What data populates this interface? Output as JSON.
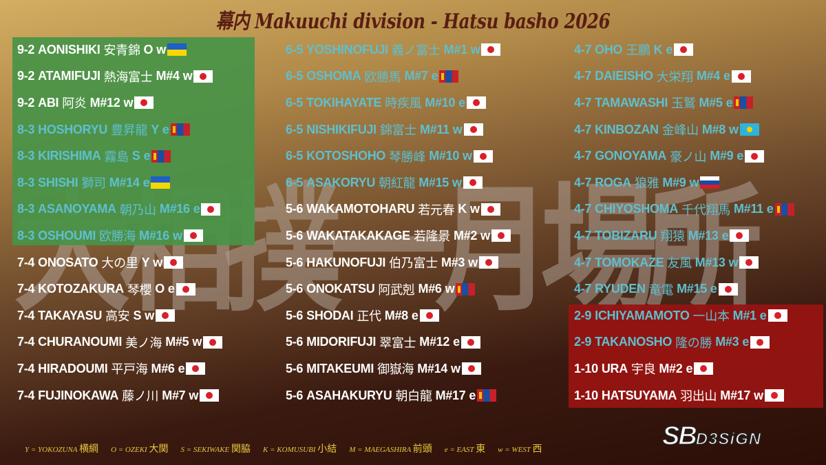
{
  "title": "幕内 Makuuchi division - Hatsu basho 2026",
  "watermark": "大相撲一月場所",
  "columns": [
    [
      {
        "record": "9-2",
        "name": "AONISHIKI",
        "kanji": "安青錦",
        "rank": "O",
        "side": "w",
        "flag": "ukraine",
        "color": "white"
      },
      {
        "record": "9-2",
        "name": "ATAMIFUJI",
        "kanji": "熱海富士",
        "rank": "M#4",
        "side": "w",
        "flag": "japan",
        "color": "white"
      },
      {
        "record": "9-2",
        "name": "ABI",
        "kanji": "阿炎",
        "rank": "M#12",
        "side": "w",
        "flag": "japan",
        "color": "white"
      },
      {
        "record": "8-3",
        "name": "HOSHORYU",
        "kanji": "豊昇龍",
        "rank": "Y",
        "side": "e",
        "flag": "mongolia",
        "color": "teal"
      },
      {
        "record": "8-3",
        "name": "KIRISHIMA",
        "kanji": "霧島",
        "rank": "S",
        "side": "e",
        "flag": "mongolia",
        "color": "teal"
      },
      {
        "record": "8-3",
        "name": "SHISHI",
        "kanji": "獅司",
        "rank": "M#14",
        "side": "e",
        "flag": "ukraine",
        "color": "teal"
      },
      {
        "record": "8-3",
        "name": "ASANOYAMA",
        "kanji": "朝乃山",
        "rank": "M#16",
        "side": "e",
        "flag": "japan",
        "color": "teal"
      },
      {
        "record": "8-3",
        "name": "OSHOUMI",
        "kanji": "欧勝海",
        "rank": "M#16",
        "side": "w",
        "flag": "japan",
        "color": "teal"
      },
      {
        "record": "7-4",
        "name": "ONOSATO",
        "kanji": "大の里",
        "rank": "Y",
        "side": "w",
        "flag": "japan",
        "color": "white"
      },
      {
        "record": "7-4",
        "name": "KOTOZAKURA",
        "kanji": "琴櫻",
        "rank": "O",
        "side": "e",
        "flag": "japan",
        "color": "white"
      },
      {
        "record": "7-4",
        "name": "TAKAYASU",
        "kanji": "高安",
        "rank": "S",
        "side": "w",
        "flag": "japan",
        "color": "white"
      },
      {
        "record": "7-4",
        "name": "CHURANOUMI",
        "kanji": "美ノ海",
        "rank": "M#5",
        "side": "w",
        "flag": "japan",
        "color": "white"
      },
      {
        "record": "7-4",
        "name": "HIRADOUMI",
        "kanji": "平戸海",
        "rank": "M#6",
        "side": "e",
        "flag": "japan",
        "color": "white"
      },
      {
        "record": "7-4",
        "name": "FUJINOKAWA",
        "kanji": "藤ノ川",
        "rank": "M#7",
        "side": "w",
        "flag": "japan",
        "color": "white"
      }
    ],
    [
      {
        "record": "6-5",
        "name": "YOSHINOFUJI",
        "kanji": "義ノ富士",
        "rank": "M#1",
        "side": "w",
        "flag": "japan",
        "color": "teal"
      },
      {
        "record": "6-5",
        "name": "OSHOMA",
        "kanji": "欧勝馬",
        "rank": "M#7",
        "side": "e",
        "flag": "mongolia",
        "color": "teal"
      },
      {
        "record": "6-5",
        "name": "TOKIHAYATE",
        "kanji": "時疾風",
        "rank": "M#10",
        "side": "e",
        "flag": "japan",
        "color": "teal"
      },
      {
        "record": "6-5",
        "name": "NISHIKIFUJI",
        "kanji": "錦富士",
        "rank": "M#11",
        "side": "w",
        "flag": "japan",
        "color": "teal"
      },
      {
        "record": "6-5",
        "name": "KOTOSHOHO",
        "kanji": "琴勝峰",
        "rank": "M#10",
        "side": "w",
        "flag": "japan",
        "color": "teal"
      },
      {
        "record": "6-5",
        "name": "ASAKORYU",
        "kanji": "朝紅龍",
        "rank": "M#15",
        "side": "w",
        "flag": "japan",
        "color": "teal"
      },
      {
        "record": "5-6",
        "name": "WAKAMOTOHARU",
        "kanji": "若元春",
        "rank": "K",
        "side": "w",
        "flag": "japan",
        "color": "white"
      },
      {
        "record": "5-6",
        "name": "WAKATAKAKAGE",
        "kanji": "若隆景",
        "rank": "M#2",
        "side": "w",
        "flag": "japan",
        "color": "white"
      },
      {
        "record": "5-6",
        "name": "HAKUNOFUJI",
        "kanji": "伯乃富士",
        "rank": "M#3",
        "side": "w",
        "flag": "japan",
        "color": "white"
      },
      {
        "record": "5-6",
        "name": "ONOKATSU",
        "kanji": "阿武剋",
        "rank": "M#6",
        "side": "w",
        "flag": "mongolia",
        "color": "white"
      },
      {
        "record": "5-6",
        "name": "SHODAI",
        "kanji": "正代",
        "rank": "M#8",
        "side": "e",
        "flag": "japan",
        "color": "white"
      },
      {
        "record": "5-6",
        "name": "MIDORIFUJI",
        "kanji": "翠富士",
        "rank": "M#12",
        "side": "e",
        "flag": "japan",
        "color": "white"
      },
      {
        "record": "5-6",
        "name": "MITAKEUMI",
        "kanji": "御嶽海",
        "rank": "M#14",
        "side": "w",
        "flag": "japan",
        "color": "white"
      },
      {
        "record": "5-6",
        "name": "ASAHAKURYU",
        "kanji": "朝白龍",
        "rank": "M#17",
        "side": "e",
        "flag": "mongolia",
        "color": "white"
      }
    ],
    [
      {
        "record": "4-7",
        "name": "OHO",
        "kanji": "王鵬",
        "rank": "K",
        "side": "e",
        "flag": "japan",
        "color": "teal"
      },
      {
        "record": "4-7",
        "name": "DAIEISHO",
        "kanji": "大栄翔",
        "rank": "M#4",
        "side": "e",
        "flag": "japan",
        "color": "teal"
      },
      {
        "record": "4-7",
        "name": "TAMAWASHI",
        "kanji": "玉鷲",
        "rank": "M#5",
        "side": "e",
        "flag": "mongolia",
        "color": "teal"
      },
      {
        "record": "4-7",
        "name": "KINBOZAN",
        "kanji": "金峰山",
        "rank": "M#8",
        "side": "w",
        "flag": "kazakhstan",
        "color": "teal"
      },
      {
        "record": "4-7",
        "name": "GONOYAMA",
        "kanji": "豪ノ山",
        "rank": "M#9",
        "side": "e",
        "flag": "japan",
        "color": "teal"
      },
      {
        "record": "4-7",
        "name": "ROGA",
        "kanji": "狼雅",
        "rank": "M#9",
        "side": "w",
        "flag": "russia",
        "color": "teal"
      },
      {
        "record": "4-7",
        "name": "CHIYOSHOMA",
        "kanji": "千代翔馬",
        "rank": "M#11",
        "side": "e",
        "flag": "mongolia",
        "color": "teal"
      },
      {
        "record": "4-7",
        "name": "TOBIZARU",
        "kanji": "翔猿",
        "rank": "M#13",
        "side": "e",
        "flag": "japan",
        "color": "teal"
      },
      {
        "record": "4-7",
        "name": "TOMOKAZE",
        "kanji": "友風",
        "rank": "M#13",
        "side": "w",
        "flag": "japan",
        "color": "teal"
      },
      {
        "record": "4-7",
        "name": "RYUDEN",
        "kanji": "竜電",
        "rank": "M#15",
        "side": "e",
        "flag": "japan",
        "color": "teal"
      },
      {
        "record": "2-9",
        "name": "ICHIYAMAMOTO",
        "kanji": "一山本",
        "rank": "M#1",
        "side": "e",
        "flag": "japan",
        "color": "teal"
      },
      {
        "record": "2-9",
        "name": "TAKANOSHO",
        "kanji": "隆の勝",
        "rank": "M#3",
        "side": "e",
        "flag": "japan",
        "color": "teal"
      },
      {
        "record": "1-10",
        "name": "URA",
        "kanji": "宇良",
        "rank": "M#2",
        "side": "e",
        "flag": "japan",
        "color": "white"
      },
      {
        "record": "1-10",
        "name": "HATSUYAMA",
        "kanji": "羽出山",
        "rank": "M#17",
        "side": "w",
        "flag": "japan",
        "color": "white"
      }
    ]
  ],
  "legend": [
    {
      "abbr": "Y = YOKOZUNA",
      "kanji": "横綱"
    },
    {
      "abbr": "O = OZEKI",
      "kanji": "大関"
    },
    {
      "abbr": "S = SEKIWAKE",
      "kanji": "関脇"
    },
    {
      "abbr": "K = KOMUSUBI",
      "kanji": "小結"
    },
    {
      "abbr": "M = MAEGASHIRA",
      "kanji": "前頭"
    },
    {
      "abbr": "e = EAST",
      "kanji": "東"
    },
    {
      "abbr": "w = WEST",
      "kanji": "西"
    }
  ],
  "logo": {
    "main": "SB",
    "sub": "D3SiGN"
  },
  "colors": {
    "white": "#ffffff",
    "teal": "#5fbfcf",
    "green_box": "#489448",
    "red_box": "#96140f",
    "title": "#5a1e12",
    "legend": "#e8c840"
  }
}
